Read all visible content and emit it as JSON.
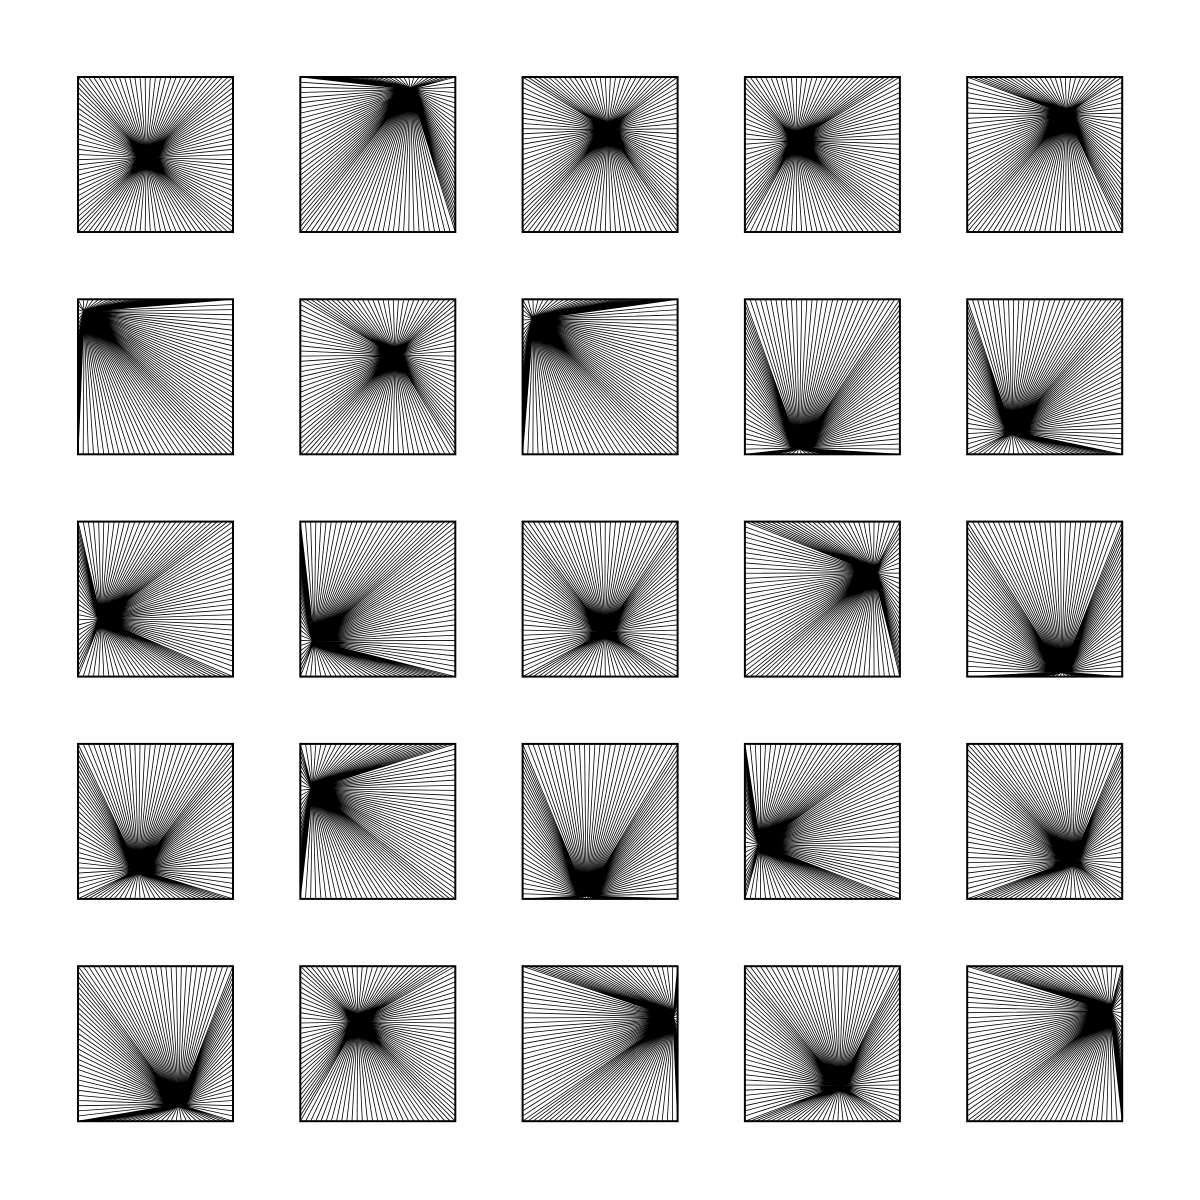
{
  "artwork": {
    "stroke_color": "#000000",
    "background_color": "#ffffff",
    "rays_per_side": 30,
    "grid_cols": 5,
    "grid_rows": 5,
    "tiles": [
      {
        "focus": [
          0.44,
          0.52
        ]
      },
      {
        "focus": [
          0.71,
          0.08
        ]
      },
      {
        "focus": [
          0.55,
          0.34
        ]
      },
      {
        "focus": [
          0.33,
          0.41
        ]
      },
      {
        "focus": [
          0.64,
          0.24
        ]
      },
      {
        "focus": [
          0.04,
          0.08
        ]
      },
      {
        "focus": [
          0.61,
          0.36
        ]
      },
      {
        "focus": [
          0.07,
          0.13
        ]
      },
      {
        "focus": [
          0.35,
          0.96
        ]
      },
      {
        "focus": [
          0.29,
          0.85
        ]
      },
      {
        "focus": [
          0.15,
          0.63
        ]
      },
      {
        "focus": [
          0.09,
          0.77
        ]
      },
      {
        "focus": [
          0.53,
          0.71
        ]
      },
      {
        "focus": [
          0.83,
          0.33
        ]
      },
      {
        "focus": [
          0.61,
          0.97
        ]
      },
      {
        "focus": [
          0.39,
          0.81
        ]
      },
      {
        "focus": [
          0.08,
          0.29
        ]
      },
      {
        "focus": [
          0.41,
          0.98
        ]
      },
      {
        "focus": [
          0.1,
          0.65
        ]
      },
      {
        "focus": [
          0.68,
          0.75
        ]
      },
      {
        "focus": [
          0.65,
          0.89
        ]
      },
      {
        "focus": [
          0.37,
          0.36
        ]
      },
      {
        "focus": [
          0.97,
          0.33
        ]
      },
      {
        "focus": [
          0.61,
          0.77
        ]
      },
      {
        "focus": [
          0.92,
          0.29
        ]
      }
    ]
  }
}
